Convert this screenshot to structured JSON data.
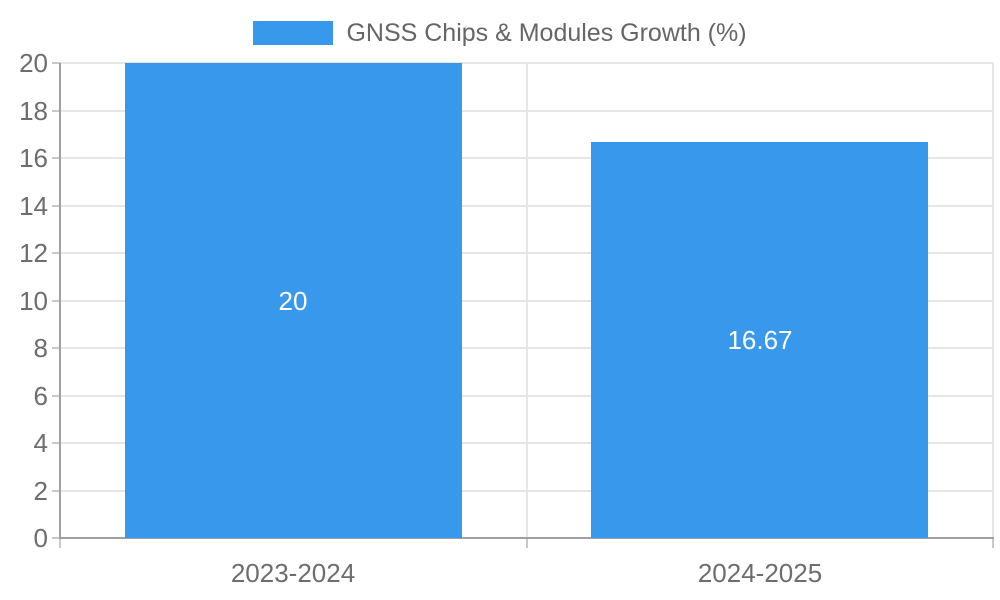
{
  "chart_data": {
    "type": "bar",
    "title": "GNSS Chips & Modules Growth (%)",
    "legend_position": "top",
    "categories": [
      "2023-2024",
      "2024-2025"
    ],
    "values": [
      20,
      16.67
    ],
    "data_labels": [
      "20",
      "16.67"
    ],
    "yticks": [
      0,
      2,
      4,
      6,
      8,
      10,
      12,
      14,
      16,
      18,
      20
    ],
    "ylim": [
      0,
      20
    ],
    "xlabel": "",
    "ylabel": "",
    "grid": true,
    "colors": {
      "bar": "#3898ec",
      "value_label": "#ffffff",
      "tick_label": "#6d6d6d",
      "legend_text": "#666666",
      "gridline": "#e6e6e6",
      "axis": "#a0a0a0",
      "tick_mark": "#c9c9c9",
      "background": "#ffffff"
    }
  }
}
